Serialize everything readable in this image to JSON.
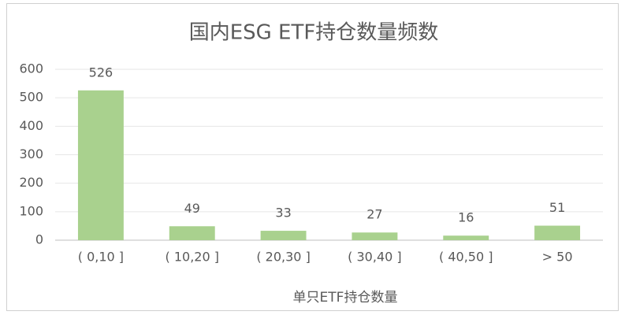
{
  "chart_data": {
    "type": "bar",
    "title": "国内ESG ETF持仓数量频数",
    "x_label": "单只ETF持仓数量",
    "categories": [
      "( 0,10 ]",
      "( 10,20 ]",
      "( 20,30 ]",
      "( 30,40 ]",
      "( 40,50 ]",
      "> 50"
    ],
    "values": [
      526,
      49,
      33,
      27,
      16,
      51
    ],
    "color": "#a9d18e",
    "ylim": [
      0,
      600
    ],
    "yticks": [
      0,
      100,
      200,
      300,
      400,
      500,
      600
    ],
    "grid": true
  }
}
